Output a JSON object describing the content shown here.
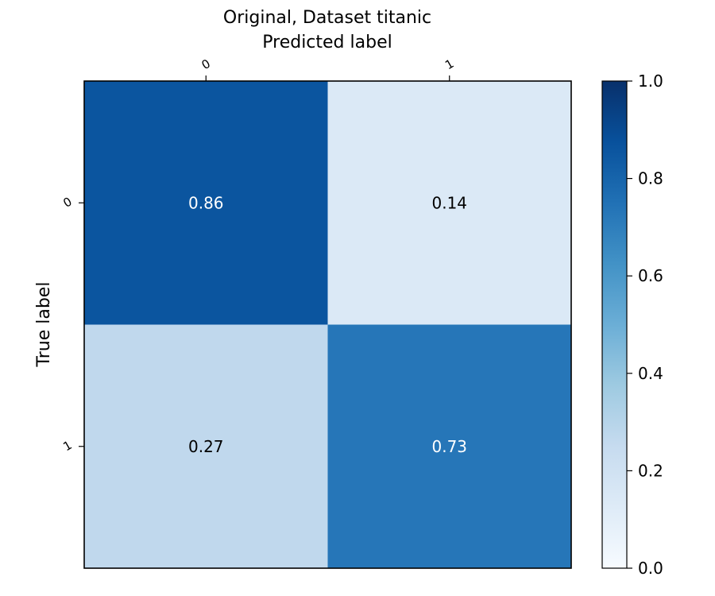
{
  "chart_data": {
    "type": "heatmap",
    "title": "Original, Dataset titanic",
    "xlabel": "Predicted label",
    "ylabel": "True label",
    "x_categories": [
      "0",
      "1"
    ],
    "y_categories": [
      "0",
      "1"
    ],
    "values": [
      [
        0.86,
        0.14
      ],
      [
        0.27,
        0.73
      ]
    ],
    "cell_labels": [
      [
        "0.86",
        "0.14"
      ],
      [
        "0.27",
        "0.73"
      ]
    ],
    "colormap": "Blues",
    "color_range": [
      0,
      1
    ],
    "colorbar_ticks": [
      "0.0",
      "0.2",
      "0.4",
      "0.6",
      "0.8",
      "1.0"
    ],
    "x_axis_position": "top",
    "grid": false
  }
}
